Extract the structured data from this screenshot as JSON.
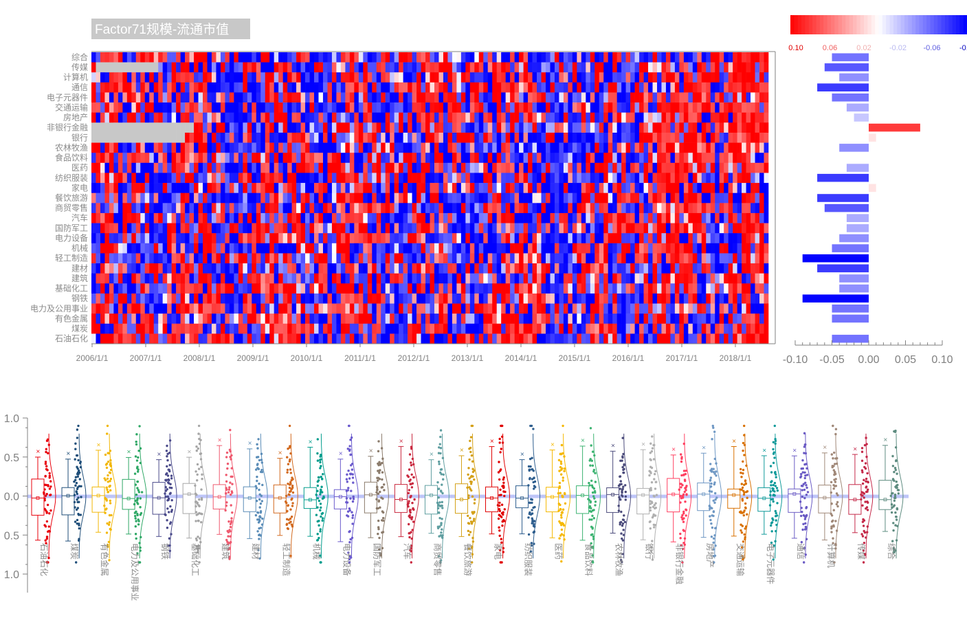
{
  "title": "Factor71规模-流通市值",
  "colors": {
    "red": "#ff0000",
    "blue": "#0000ff",
    "white": "#ffffff",
    "missing": "#c8c8c8",
    "axis": "#808080"
  },
  "chart_data": [
    {
      "type": "heatmap",
      "title": "Factor71规模-流通市值",
      "rows": [
        "综合",
        "传媒",
        "计算机",
        "通信",
        "电子元器件",
        "交通运输",
        "房地产",
        "非银行金融",
        "银行",
        "农林牧渔",
        "食品饮料",
        "医药",
        "纺织服装",
        "家电",
        "餐饮旅游",
        "商贸零售",
        "汽车",
        "国防军工",
        "电力设备",
        "机械",
        "轻工制造",
        "建材",
        "建筑",
        "基础化工",
        "钢铁",
        "电力及公用事业",
        "有色金属",
        "煤炭",
        "石油石化"
      ],
      "x_ticks": [
        "2006/1/1",
        "2007/1/1",
        "2008/1/1",
        "2009/1/1",
        "2010/1/1",
        "2011/1/1",
        "2012/1/1",
        "2013/1/1",
        "2014/1/1",
        "2015/1/1",
        "2016/1/1",
        "2017/1/1",
        "2018/1/1"
      ],
      "n_periods": 152,
      "color_scale": {
        "min": -0.1,
        "max": 0.1,
        "low_color": "blue",
        "high_color": "red"
      },
      "colorbar_ticks": [
        "0.10",
        "0.06",
        "0.02",
        "-0.02",
        "-0.06",
        "-0.1"
      ]
    },
    {
      "type": "bar",
      "orientation": "horizontal",
      "categories": [
        "综合",
        "传媒",
        "计算机",
        "通信",
        "电子元器件",
        "交通运输",
        "房地产",
        "非银行金融",
        "银行",
        "农林牧渔",
        "食品饮料",
        "医药",
        "纺织服装",
        "家电",
        "餐饮旅游",
        "商贸零售",
        "汽车",
        "国防军工",
        "电力设备",
        "机械",
        "轻工制造",
        "建材",
        "建筑",
        "基础化工",
        "钢铁",
        "电力及公用事业",
        "有色金属",
        "煤炭",
        "石油石化"
      ],
      "values": [
        -0.05,
        -0.06,
        -0.04,
        -0.07,
        -0.05,
        -0.03,
        -0.02,
        0.07,
        0.01,
        -0.04,
        0,
        -0.03,
        -0.07,
        0.01,
        -0.07,
        -0.06,
        -0.03,
        -0.03,
        -0.04,
        -0.05,
        -0.09,
        -0.07,
        -0.04,
        -0.04,
        -0.09,
        -0.05,
        -0.05,
        0,
        -0.05
      ],
      "xlim": [
        -0.1,
        0.1
      ],
      "x_ticks": [
        "-0.10",
        "-0.05",
        "0.00",
        "0.05",
        "0.10"
      ]
    },
    {
      "type": "box",
      "categories": [
        "石油石化",
        "煤炭",
        "有色金属",
        "电力及公用事业",
        "钢铁",
        "基础化工",
        "建筑",
        "建材",
        "轻工制造",
        "机械",
        "电力设备",
        "国防军工",
        "汽车",
        "商贸零售",
        "餐饮旅游",
        "家电",
        "纺织服装",
        "医药",
        "食品饮料",
        "农林牧渔",
        "银行",
        "非银行金融",
        "房地产",
        "交通运输",
        "电子元器件",
        "通信",
        "计算机",
        "传媒",
        "综合"
      ],
      "y_ticks": [
        "1.0",
        "0.5",
        "0.0",
        "0.5",
        "1.0"
      ],
      "ylim": [
        -1.0,
        1.0
      ],
      "colors": [
        "#e8000b",
        "#1f4e79",
        "#f2b705",
        "#2fa866",
        "#4a4a8a",
        "#a6a6a6",
        "#ef5a6f",
        "#5b8db8",
        "#d2691e",
        "#009c8c",
        "#6a5acd",
        "#8b7b6b",
        "#c9283e",
        "#5f9ea0",
        "#d4a017",
        "#e00000",
        "#2e5e8e",
        "#f5b800",
        "#3cb371",
        "#4b4b7b",
        "#b0b0b0",
        "#ff4060",
        "#6f98c4",
        "#d87000",
        "#0f9a9a",
        "#6a5ac4",
        "#a08878",
        "#c42848",
        "#5e8c80"
      ]
    }
  ]
}
